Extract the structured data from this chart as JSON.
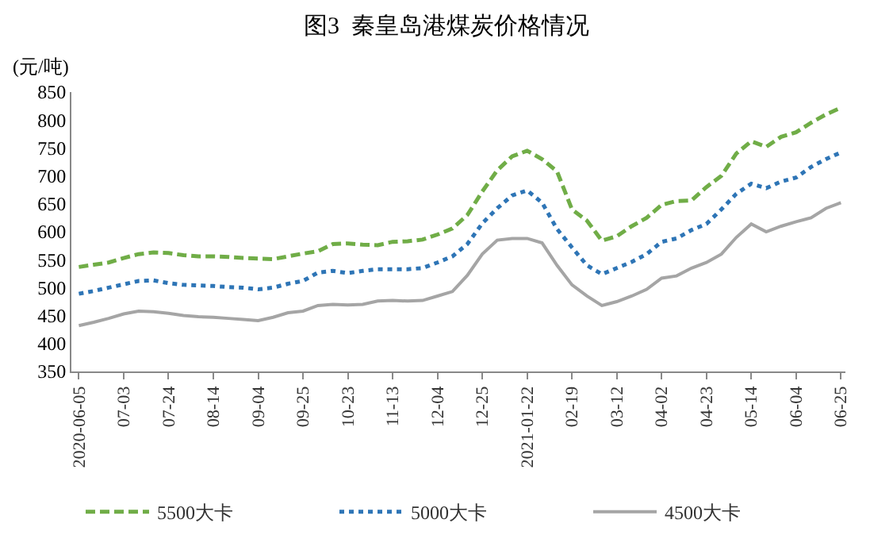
{
  "chart_data": {
    "type": "line",
    "title": "图3  秦皇岛港煤炭价格情况",
    "ylabel": "(元/吨)",
    "categories": [
      "2020-06-05",
      null,
      null,
      "07-03",
      null,
      null,
      "07-24",
      null,
      null,
      "08-14",
      null,
      null,
      "09-04",
      null,
      null,
      "09-25",
      null,
      null,
      "10-23",
      null,
      null,
      "11-13",
      null,
      null,
      "12-04",
      null,
      null,
      "12-25",
      null,
      null,
      "2021-01-22",
      null,
      null,
      "02-19",
      null,
      null,
      "03-12",
      null,
      null,
      "04-02",
      null,
      null,
      "04-23",
      null,
      null,
      "05-14",
      null,
      null,
      "06-04",
      null,
      null,
      "06-25"
    ],
    "series": [
      {
        "name": "5500大卡",
        "color": "#70ad47",
        "line_style": "dashed",
        "values": [
          537,
          541,
          545,
          553,
          560,
          563,
          562,
          558,
          556,
          556,
          555,
          553,
          552,
          551,
          556,
          561,
          565,
          578,
          579,
          577,
          576,
          582,
          583,
          586,
          595,
          606,
          630,
          672,
          710,
          735,
          745,
          730,
          708,
          640,
          620,
          584,
          592,
          610,
          625,
          648,
          655,
          656,
          680,
          700,
          740,
          762,
          752,
          770,
          778,
          795,
          810,
          822
        ]
      },
      {
        "name": "5000大卡",
        "color": "#2e75b6",
        "line_style": "dotted",
        "values": [
          489,
          494,
          500,
          506,
          512,
          513,
          508,
          505,
          504,
          503,
          501,
          500,
          497,
          500,
          507,
          512,
          527,
          530,
          526,
          530,
          533,
          533,
          533,
          535,
          545,
          556,
          578,
          615,
          642,
          665,
          674,
          652,
          605,
          572,
          540,
          524,
          535,
          546,
          560,
          582,
          588,
          603,
          614,
          640,
          668,
          686,
          678,
          690,
          697,
          716,
          730,
          742
        ]
      },
      {
        "name": "4500大卡",
        "color": "#a5a5a5",
        "line_style": "solid",
        "values": [
          432,
          438,
          445,
          453,
          458,
          457,
          454,
          450,
          448,
          447,
          445,
          443,
          441,
          447,
          455,
          458,
          468,
          470,
          469,
          470,
          476,
          477,
          476,
          477,
          485,
          493,
          522,
          560,
          585,
          588,
          588,
          580,
          540,
          505,
          485,
          468,
          475,
          485,
          497,
          517,
          521,
          535,
          545,
          560,
          590,
          614,
          600,
          610,
          618,
          625,
          642,
          652
        ]
      }
    ],
    "ylim": [
      350,
      850
    ],
    "yticks": [
      350,
      400,
      450,
      500,
      550,
      600,
      650,
      700,
      750,
      800,
      850
    ],
    "legend": "bottom",
    "marker": "none"
  }
}
